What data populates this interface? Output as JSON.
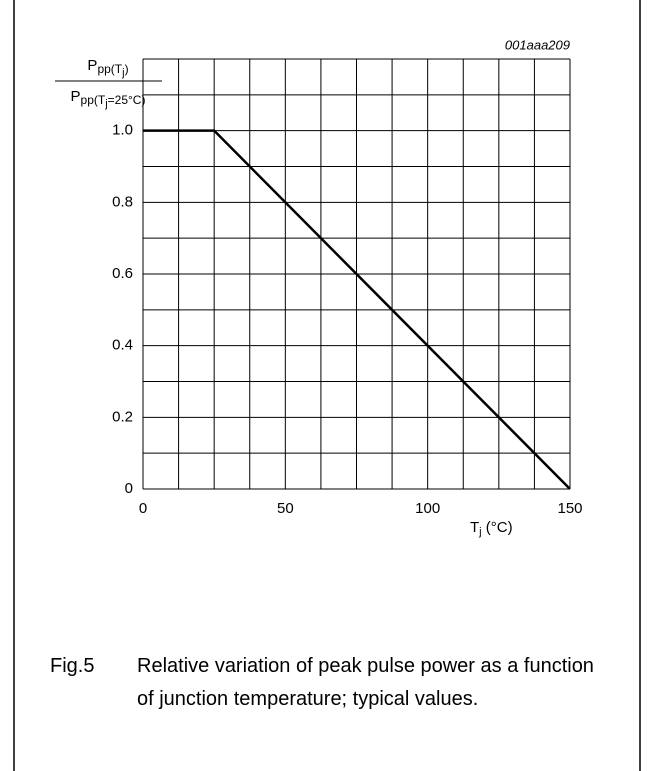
{
  "chart_data": {
    "type": "line",
    "code": "001aaa209",
    "ylabel": {
      "numerator": [
        "P",
        "pp(T",
        "j",
        ")"
      ],
      "denominator": [
        "P",
        "pp(T",
        "j",
        "=25°C)"
      ]
    },
    "xlabel": [
      "T",
      "j",
      " (°C)"
    ],
    "x": [
      0,
      25,
      150
    ],
    "values": [
      1,
      1,
      0
    ],
    "color": "#000000",
    "xlim": [
      0,
      150
    ],
    "ylim": [
      0,
      1.2
    ],
    "xticks": [
      0,
      50,
      100,
      150
    ],
    "yticks": [
      0,
      0.2,
      0.4,
      0.6,
      0.8,
      {
        "value": 1,
        "label": "1.0"
      }
    ],
    "xminor": [
      12.5,
      25,
      37.5,
      62.5,
      75,
      87.5,
      112.5,
      125,
      137.5
    ],
    "yminor": [
      0.1,
      0.3,
      0.5,
      0.7,
      0.9,
      1.1,
      1.2
    ],
    "grid": true,
    "caption": {
      "label": "Fig.5",
      "text": "Relative variation of peak pulse power as a function of junction temperature; typical values."
    }
  }
}
